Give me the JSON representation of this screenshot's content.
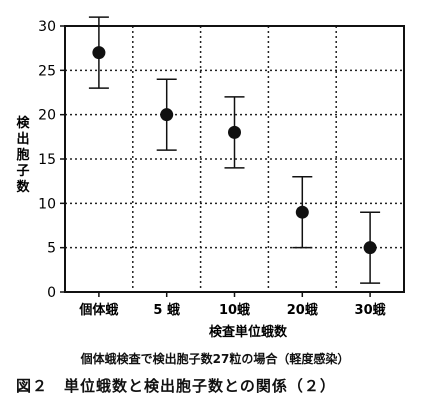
{
  "chart_data": {
    "type": "scatter",
    "title": "",
    "xlabel": "検査単位蛾数",
    "ylabel": "検出胞子数",
    "categories": [
      "個体蛾",
      "5 蛾",
      "10蛾",
      "20蛾",
      "30蛾"
    ],
    "series": [
      {
        "values": [
          27,
          20,
          18,
          9,
          5
        ],
        "error_low": [
          23,
          16,
          14,
          5,
          1
        ],
        "error_high": [
          31,
          24,
          22,
          13,
          9
        ]
      }
    ],
    "yticks": [
      0,
      5,
      10,
      15,
      20,
      25,
      30
    ],
    "ylim": [
      0,
      30
    ],
    "grid": "dotted",
    "marker": "filled-circle"
  },
  "captions": {
    "sub": "個体蛾検査で検出胞子数27粒の場合（軽度感染）",
    "figure": "図２　単位蛾数と検出胞子数との関係（２）"
  }
}
